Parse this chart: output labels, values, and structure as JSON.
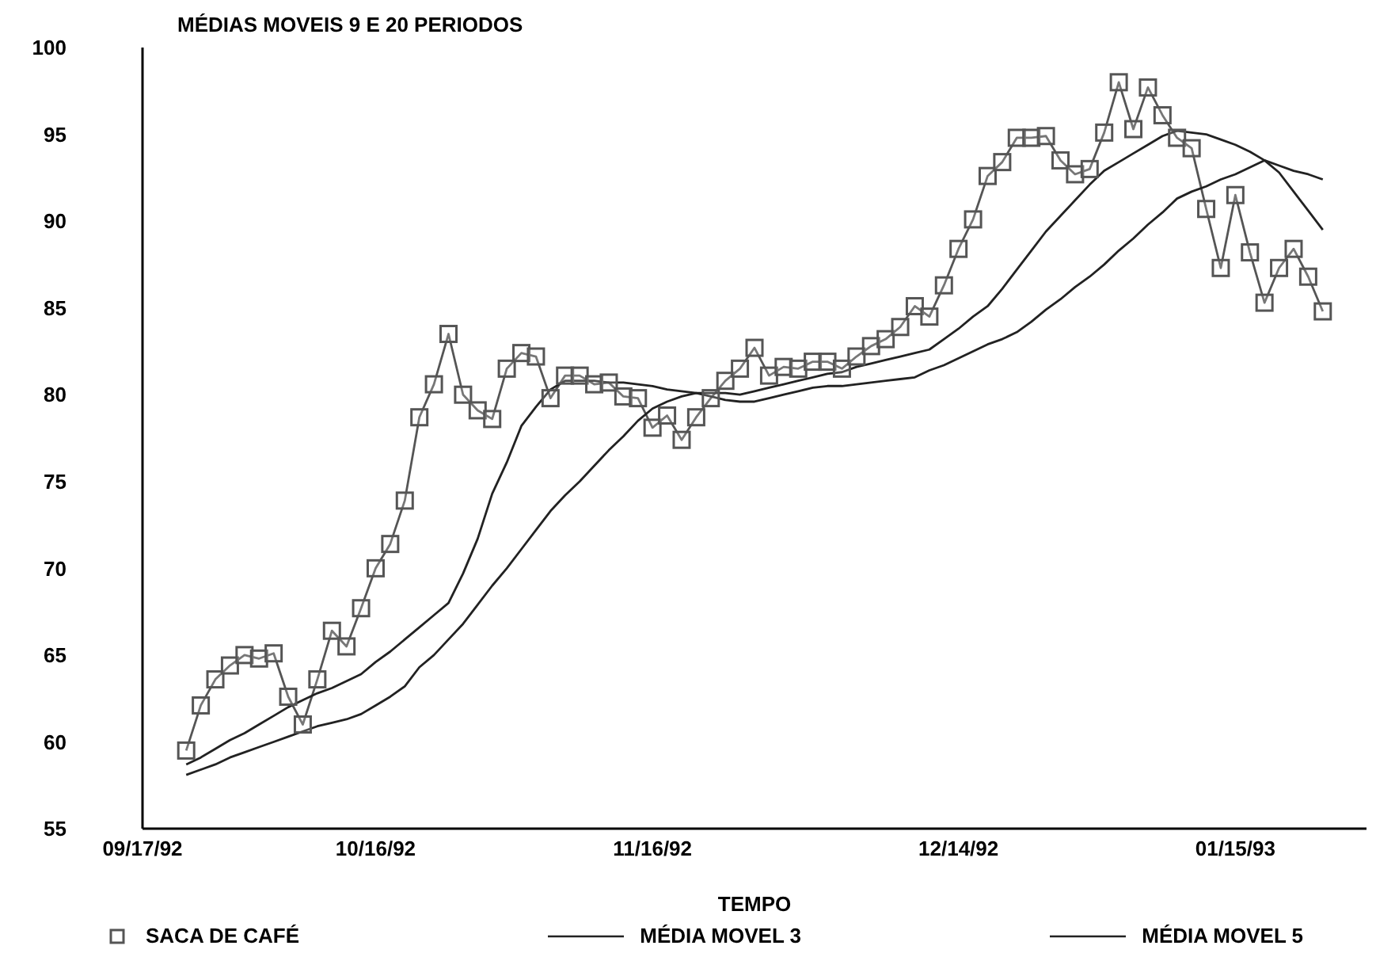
{
  "chart_data": {
    "type": "line",
    "title": "MÉDIAS MOVEIS 9 E 20 PERIODOS",
    "xlabel": "TEMPO",
    "categories": [
      "09/17/92",
      null,
      null,
      null,
      null,
      null,
      null,
      null,
      null,
      null,
      null,
      null,
      null,
      null,
      null,
      null,
      "10/16/92",
      null,
      null,
      null,
      null,
      null,
      null,
      null,
      null,
      null,
      null,
      null,
      null,
      null,
      null,
      null,
      null,
      null,
      null,
      "11/16/92",
      null,
      null,
      null,
      null,
      null,
      null,
      null,
      null,
      null,
      null,
      null,
      null,
      null,
      null,
      null,
      null,
      null,
      null,
      null,
      null,
      "12/14/92",
      null,
      null,
      null,
      null,
      null,
      null,
      null,
      null,
      null,
      null,
      null,
      null,
      null,
      null,
      null,
      null,
      null,
      null,
      "01/15/93",
      null,
      null,
      null,
      null,
      null,
      null,
      null,
      null,
      null
    ],
    "ylim": [
      55,
      100
    ],
    "yticks": [
      55,
      60,
      65,
      70,
      75,
      80,
      85,
      90,
      95,
      100
    ],
    "grid": false,
    "legend": "bottom",
    "series": [
      {
        "name": "SACA DE CAFÉ",
        "color": "#555555",
        "marker": "square",
        "values": [
          null,
          null,
          null,
          59.5,
          62.1,
          63.6,
          64.4,
          65.0,
          64.8,
          65.1,
          62.6,
          61.0,
          63.6,
          66.4,
          65.5,
          67.7,
          70.0,
          71.4,
          73.9,
          78.7,
          80.6,
          83.5,
          80.0,
          79.1,
          78.6,
          81.5,
          82.4,
          82.2,
          79.8,
          81.1,
          81.1,
          80.6,
          80.7,
          79.9,
          79.8,
          78.1,
          78.8,
          77.4,
          78.7,
          79.8,
          80.8,
          81.5,
          82.7,
          81.1,
          81.6,
          81.5,
          81.9,
          81.9,
          81.5,
          82.2,
          82.8,
          83.2,
          83.9,
          85.1,
          84.5,
          86.3,
          88.4,
          90.1,
          92.6,
          93.4,
          94.8,
          94.8,
          94.9,
          93.5,
          92.7,
          93.0,
          95.1,
          98.0,
          95.3,
          97.7,
          96.1,
          94.8,
          94.2,
          90.7,
          87.3,
          91.5,
          88.2,
          85.3,
          87.3,
          88.4,
          86.8,
          84.8,
          null,
          null,
          null
        ]
      },
      {
        "name": "MÉDIA MOVEL 3",
        "color": "#222222",
        "marker": "none",
        "values": [
          null,
          null,
          null,
          58.7,
          59.1,
          59.6,
          60.1,
          60.5,
          61.0,
          61.5,
          62.0,
          62.4,
          62.8,
          63.1,
          63.5,
          63.9,
          64.6,
          65.2,
          65.9,
          66.6,
          67.3,
          68.0,
          69.7,
          71.7,
          74.3,
          76.1,
          78.2,
          79.3,
          80.3,
          80.8,
          80.8,
          80.8,
          80.7,
          80.7,
          80.6,
          80.5,
          80.3,
          80.2,
          80.1,
          80.1,
          80.1,
          80.0,
          80.2,
          80.4,
          80.6,
          80.8,
          81.0,
          81.2,
          81.3,
          81.6,
          81.8,
          82.0,
          82.2,
          82.4,
          82.6,
          83.2,
          83.8,
          84.5,
          85.1,
          86.1,
          87.2,
          88.3,
          89.4,
          90.3,
          91.2,
          92.1,
          92.9,
          93.4,
          93.9,
          94.4,
          94.9,
          95.2,
          95.1,
          95.0,
          94.7,
          94.4,
          94.0,
          93.5,
          92.8,
          91.7,
          90.6,
          89.5,
          null,
          null,
          null
        ]
      },
      {
        "name": "MÉDIA MOVEL 5",
        "color": "#222222",
        "marker": "none",
        "values": [
          null,
          null,
          null,
          58.1,
          58.4,
          58.7,
          59.1,
          59.4,
          59.7,
          60.0,
          60.3,
          60.6,
          60.9,
          61.1,
          61.3,
          61.6,
          62.1,
          62.6,
          63.2,
          64.3,
          65.0,
          65.9,
          66.8,
          67.9,
          69.0,
          70.0,
          71.1,
          72.2,
          73.3,
          74.2,
          75.0,
          75.9,
          76.8,
          77.6,
          78.5,
          79.2,
          79.6,
          79.9,
          80.1,
          79.9,
          79.7,
          79.6,
          79.6,
          79.8,
          80.0,
          80.2,
          80.4,
          80.5,
          80.5,
          80.6,
          80.7,
          80.8,
          80.9,
          81.0,
          81.4,
          81.7,
          82.1,
          82.5,
          82.9,
          83.2,
          83.6,
          84.2,
          84.9,
          85.5,
          86.2,
          86.8,
          87.5,
          88.3,
          89.0,
          89.8,
          90.5,
          91.3,
          91.7,
          92.0,
          92.4,
          92.7,
          93.1,
          93.5,
          93.2,
          92.9,
          92.7,
          92.4,
          null,
          null,
          null
        ]
      }
    ]
  }
}
